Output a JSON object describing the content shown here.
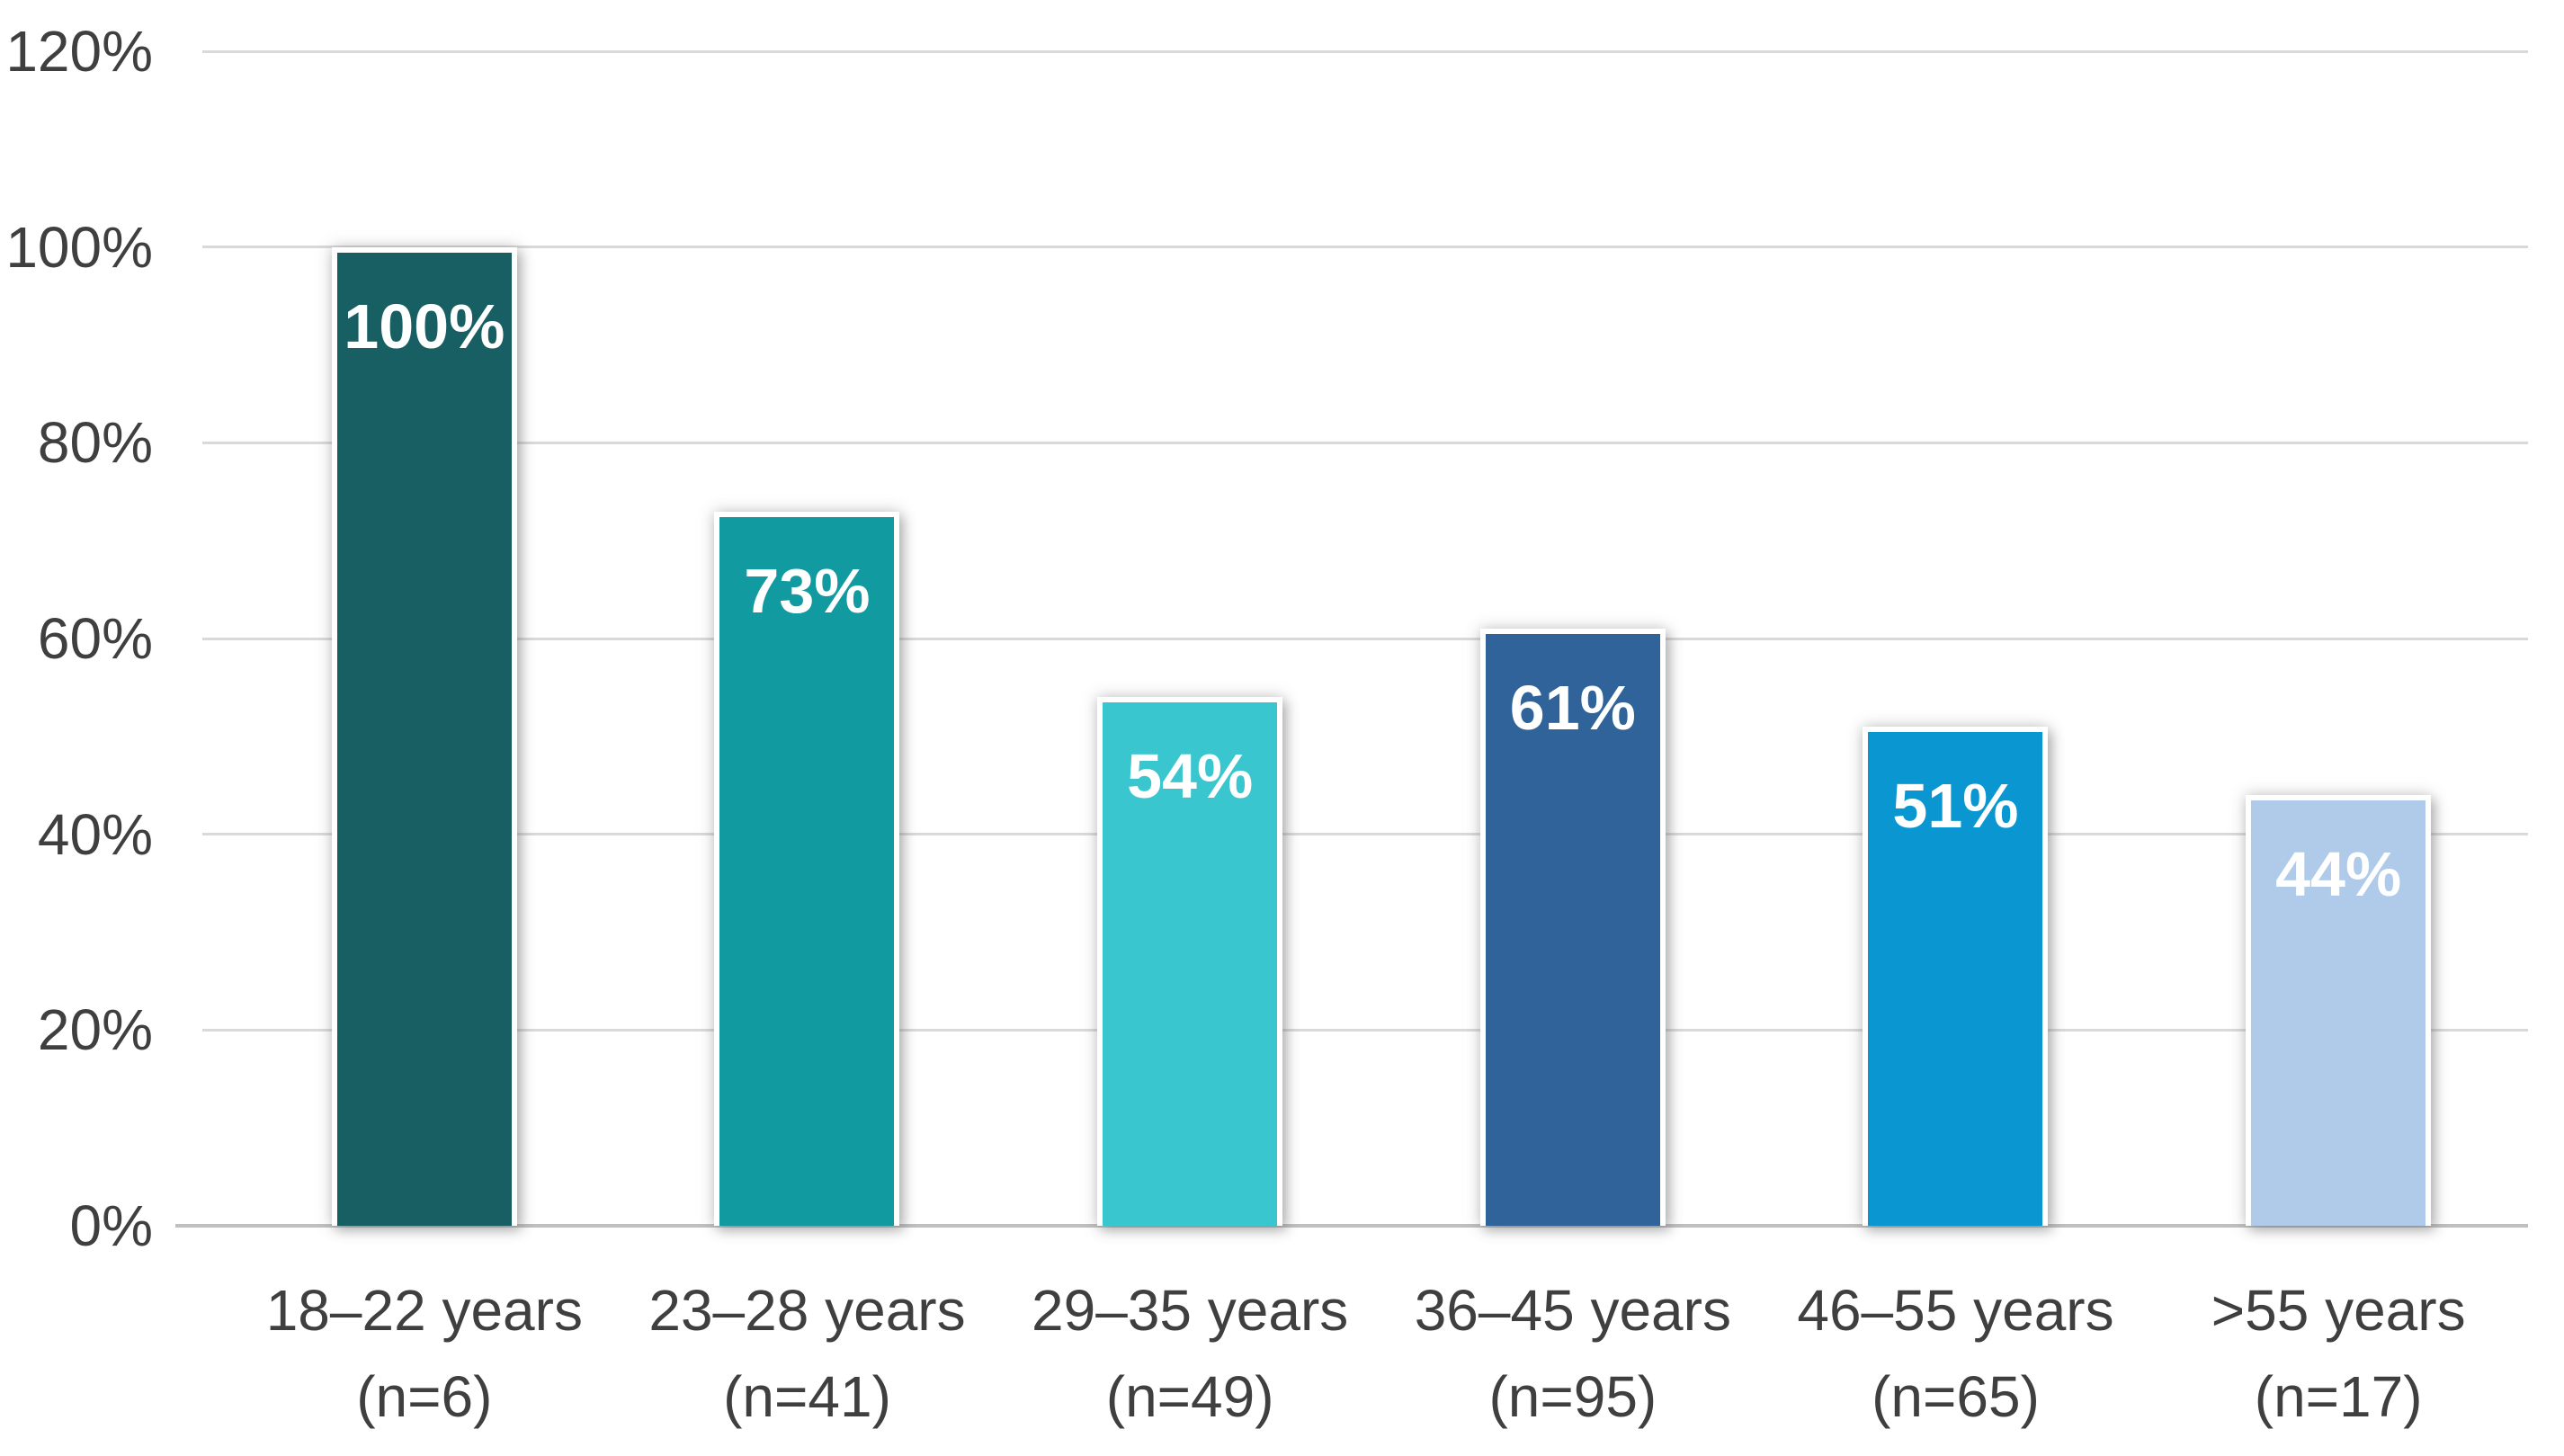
{
  "chart_data": {
    "type": "bar",
    "title": "",
    "xlabel": "",
    "ylabel": "",
    "categories": [
      "18–22 years",
      "23–28 years",
      "29–35 years",
      "36–45 years",
      "46–55 years",
      ">55 years"
    ],
    "sample_size_labels": [
      "(n=6)",
      "(n=41)",
      "(n=49)",
      "(n=95)",
      "(n=65)",
      "(n=17)"
    ],
    "values": [
      100,
      73,
      54,
      61,
      51,
      44
    ],
    "value_labels": [
      "100%",
      "73%",
      "54%",
      "61%",
      "51%",
      "44%"
    ],
    "bar_colors": [
      "#175F63",
      "#119AA0",
      "#3AC6CE",
      "#2F6399",
      "#0A96D0",
      "#B0CBE9"
    ],
    "ylim": [
      0,
      120
    ],
    "yticks": [
      0,
      20,
      40,
      60,
      80,
      100,
      120
    ],
    "ytick_labels": [
      "0%",
      "20%",
      "40%",
      "60%",
      "80%",
      "100%",
      "120%"
    ],
    "grid": true,
    "legend": false,
    "gridline_color": "#D9D9D9",
    "axis_line_color": "#BFBFBF",
    "tick_text_color": "#3F3F3F",
    "value_label_color": "#FFFFFF",
    "background_color": "#FFFFFF"
  }
}
